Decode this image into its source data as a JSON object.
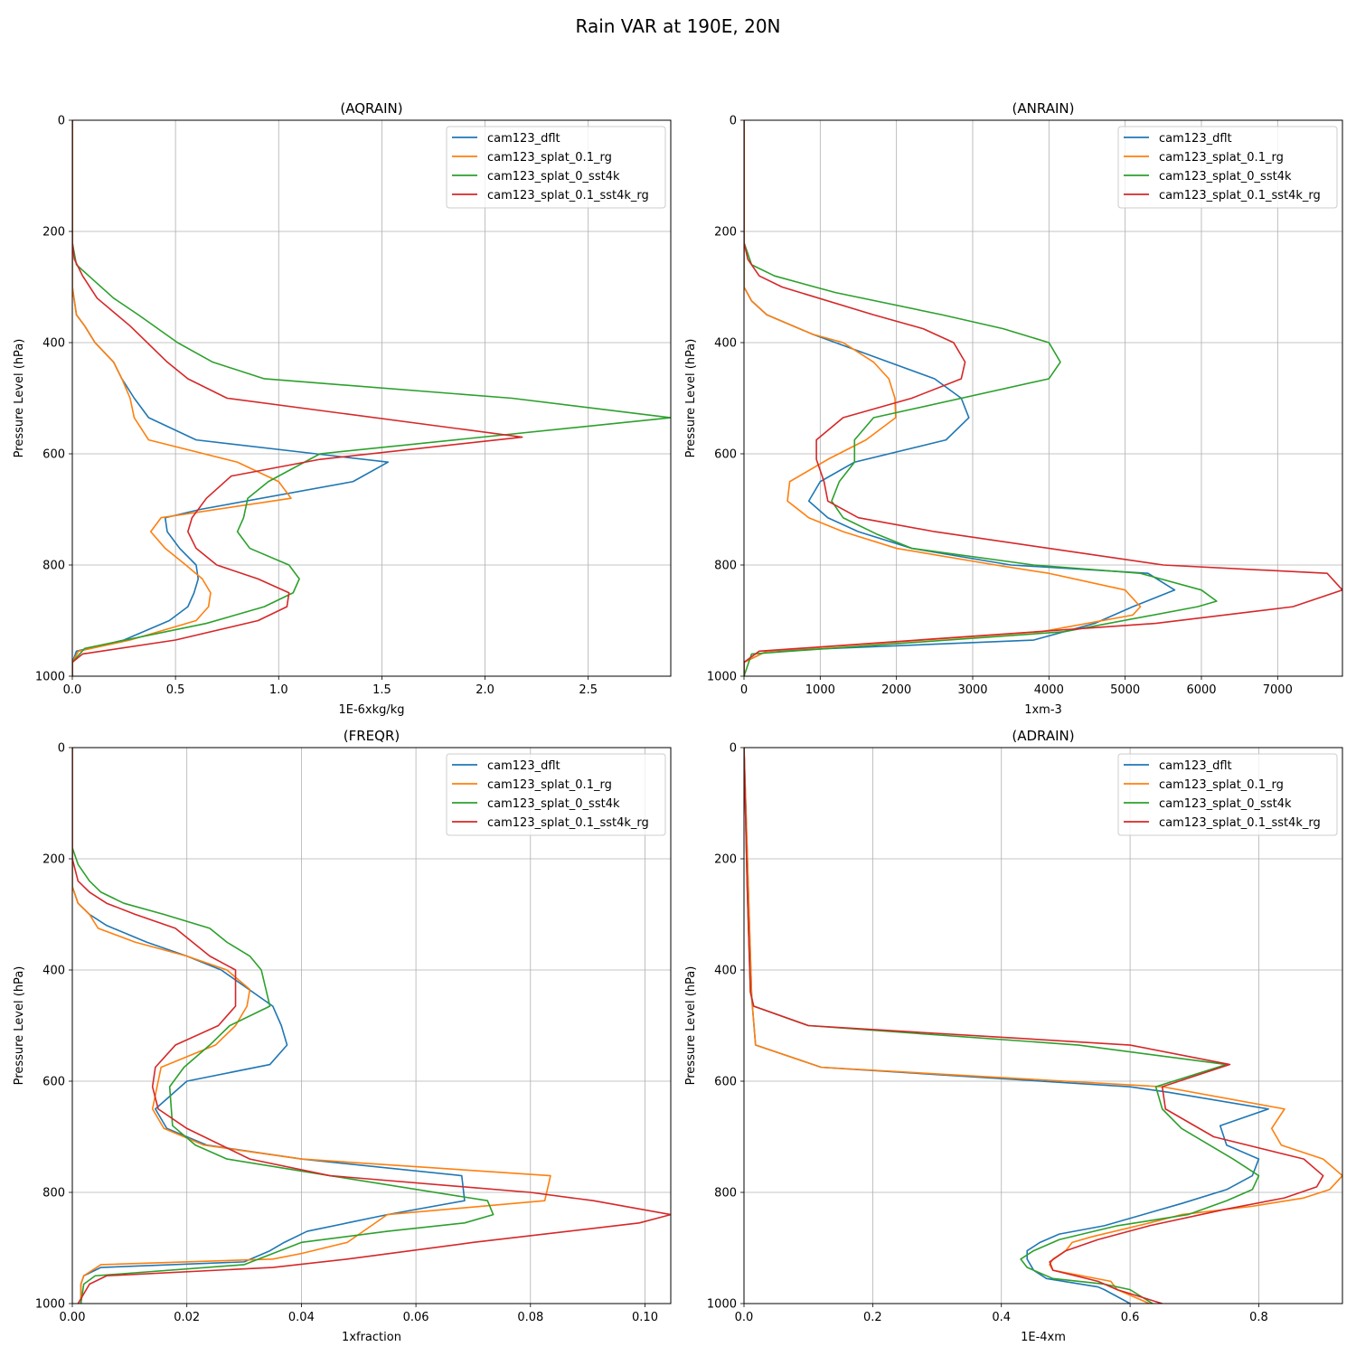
{
  "figure": {
    "title": "Rain VAR at 190E, 20N"
  },
  "colors": {
    "cam123_dflt": "#1f77b4",
    "cam123_splat_0.1_rg": "#ff7f0e",
    "cam123_splat_0_sst4k": "#2ca02c",
    "cam123_splat_0.1_sst4k_rg": "#d62728"
  },
  "chart_data": [
    {
      "type": "line",
      "title": "(AQRAIN)",
      "xlabel": "1E-6xkg/kg",
      "ylabel": "Pressure Level (hPa)",
      "xlim": [
        0,
        2.9
      ],
      "ylim": [
        1000,
        0
      ],
      "xticks": [
        0.0,
        0.5,
        1.0,
        1.5,
        2.0,
        2.5
      ],
      "xtick_labels": [
        "0.0",
        "0.5",
        "1.0",
        "1.5",
        "2.0",
        "2.5"
      ],
      "yticks": [
        0,
        200,
        400,
        600,
        800,
        1000
      ],
      "ytick_labels": [
        "0",
        "200",
        "400",
        "600",
        "800",
        "1000"
      ],
      "grid": true,
      "legend_position": "top-right",
      "series": [
        {
          "name": "cam123_dflt",
          "x": [
            0,
            0,
            0.02,
            0.06,
            0.11,
            0.2,
            0.24,
            0.3,
            0.37,
            0.6,
            1.53,
            1.36,
            0.62,
            0.45,
            0.46,
            0.52,
            0.6,
            0.61,
            0.59,
            0.56,
            0.47,
            0.25,
            0.02,
            0,
            0
          ],
          "y": [
            0,
            300,
            350,
            370,
            400,
            435,
            465,
            500,
            535,
            575,
            615,
            650,
            700,
            715,
            740,
            770,
            800,
            825,
            850,
            875,
            900,
            935,
            955,
            975,
            1000
          ]
        },
        {
          "name": "cam123_splat_0.1_rg",
          "x": [
            0,
            0,
            0.02,
            0.06,
            0.11,
            0.2,
            0.24,
            0.28,
            0.3,
            0.37,
            0.8,
            1.0,
            1.06,
            0.43,
            0.38,
            0.45,
            0.55,
            0.63,
            0.67,
            0.66,
            0.6,
            0.28,
            0.03,
            0,
            0
          ],
          "y": [
            0,
            300,
            350,
            370,
            400,
            435,
            465,
            500,
            535,
            575,
            615,
            650,
            680,
            715,
            740,
            770,
            800,
            825,
            850,
            875,
            900,
            935,
            955,
            975,
            1000
          ]
        },
        {
          "name": "cam123_splat_0_sst4k",
          "x": [
            0,
            0,
            0.02,
            0.08,
            0.2,
            0.32,
            0.51,
            0.68,
            0.93,
            2.13,
            2.9,
            1.2,
            0.95,
            0.85,
            0.83,
            0.8,
            0.86,
            1.05,
            1.1,
            1.07,
            0.93,
            0.65,
            0.06,
            0,
            0
          ],
          "y": [
            0,
            220,
            260,
            280,
            320,
            350,
            400,
            435,
            465,
            500,
            535,
            600,
            650,
            680,
            715,
            740,
            770,
            800,
            825,
            850,
            875,
            905,
            950,
            975,
            1000
          ]
        },
        {
          "name": "cam123_splat_0.1_sst4k_rg",
          "x": [
            0,
            0,
            0.01,
            0.05,
            0.12,
            0.28,
            0.46,
            0.56,
            0.75,
            2.18,
            1.2,
            0.77,
            0.65,
            0.58,
            0.56,
            0.6,
            0.7,
            0.9,
            1.05,
            1.04,
            0.9,
            0.5,
            0.05,
            0,
            0
          ],
          "y": [
            0,
            220,
            250,
            280,
            320,
            370,
            435,
            465,
            500,
            570,
            610,
            640,
            680,
            715,
            740,
            770,
            800,
            825,
            850,
            875,
            900,
            935,
            960,
            975,
            1000
          ]
        }
      ]
    },
    {
      "type": "line",
      "title": "(ANRAIN)",
      "xlabel": "1xm-3",
      "ylabel": "Pressure Level (hPa)",
      "xlim": [
        0,
        7850
      ],
      "ylim": [
        1000,
        0
      ],
      "xticks": [
        0,
        1000,
        2000,
        3000,
        4000,
        5000,
        6000,
        7000
      ],
      "xtick_labels": [
        "0",
        "1000",
        "2000",
        "3000",
        "4000",
        "5000",
        "6000",
        "7000"
      ],
      "yticks": [
        0,
        200,
        400,
        600,
        800,
        1000
      ],
      "ytick_labels": [
        "0",
        "200",
        "400",
        "600",
        "800",
        "1000"
      ],
      "grid": true,
      "legend_position": "top-right",
      "series": [
        {
          "name": "cam123_dflt",
          "x": [
            0,
            0,
            100,
            300,
            900,
            1800,
            2500,
            2850,
            2950,
            2650,
            1450,
            1000,
            850,
            1100,
            1500,
            2200,
            3500,
            5300,
            5650,
            5100,
            4600,
            3800,
            300,
            0,
            0
          ],
          "y": [
            0,
            300,
            325,
            350,
            385,
            430,
            465,
            500,
            535,
            575,
            615,
            650,
            685,
            715,
            740,
            770,
            800,
            815,
            845,
            875,
            905,
            935,
            955,
            975,
            1000
          ]
        },
        {
          "name": "cam123_splat_0.1_rg",
          "x": [
            0,
            0,
            100,
            300,
            900,
            1300,
            1700,
            1900,
            1980,
            1990,
            1600,
            1100,
            600,
            570,
            850,
            1300,
            2000,
            3300,
            4000,
            5000,
            5200,
            5100,
            3900,
            300,
            0,
            0
          ],
          "y": [
            0,
            300,
            325,
            350,
            385,
            400,
            435,
            465,
            500,
            535,
            575,
            610,
            650,
            685,
            715,
            740,
            770,
            800,
            815,
            845,
            875,
            890,
            920,
            955,
            975,
            1000
          ]
        },
        {
          "name": "cam123_splat_0_sst4k",
          "x": [
            0,
            0,
            100,
            400,
            1200,
            2600,
            3400,
            4000,
            4150,
            4000,
            1700,
            1450,
            1450,
            1250,
            1150,
            1300,
            1750,
            2200,
            3800,
            5200,
            6000,
            6200,
            5950,
            4200,
            100,
            0
          ],
          "y": [
            0,
            220,
            260,
            280,
            310,
            350,
            375,
            400,
            435,
            465,
            535,
            575,
            615,
            650,
            685,
            715,
            745,
            770,
            800,
            815,
            845,
            865,
            875,
            920,
            960,
            1000
          ]
        },
        {
          "name": "cam123_splat_0.1_sst4k_rg",
          "x": [
            0,
            0,
            50,
            200,
            500,
            1700,
            2350,
            2750,
            2900,
            2850,
            2200,
            1300,
            950,
            950,
            1050,
            1100,
            1500,
            2500,
            4000,
            5500,
            7650,
            7850,
            7200,
            5400,
            200,
            0,
            0
          ],
          "y": [
            0,
            220,
            250,
            280,
            300,
            350,
            375,
            400,
            435,
            465,
            500,
            535,
            575,
            610,
            650,
            685,
            715,
            740,
            770,
            800,
            815,
            845,
            875,
            905,
            955,
            975,
            1000
          ]
        }
      ]
    },
    {
      "type": "line",
      "title": "(FREQR)",
      "xlabel": "1xfraction",
      "ylabel": "Pressure Level (hPa)",
      "xlim": [
        0,
        0.1045
      ],
      "ylim": [
        1000,
        0
      ],
      "xticks": [
        0.0,
        0.02,
        0.04,
        0.06,
        0.08,
        0.1
      ],
      "xtick_labels": [
        "0.00",
        "0.02",
        "0.04",
        "0.06",
        "0.08",
        "0.10"
      ],
      "yticks": [
        0,
        200,
        400,
        600,
        800,
        1000
      ],
      "ytick_labels": [
        "0",
        "200",
        "400",
        "600",
        "800",
        "1000"
      ],
      "grid": true,
      "legend_position": "top-right",
      "series": [
        {
          "name": "cam123_dflt",
          "x": [
            0,
            0,
            0.001,
            0.003,
            0.006,
            0.013,
            0.02,
            0.026,
            0.035,
            0.0365,
            0.0375,
            0.0345,
            0.02,
            0.0145,
            0.0165,
            0.0235,
            0.04,
            0.068,
            0.0685,
            0.055,
            0.048,
            0.041,
            0.037,
            0.0345,
            0.03,
            0.005,
            0.002,
            0.0015,
            0.0015
          ],
          "y": [
            0,
            250,
            280,
            300,
            320,
            350,
            375,
            400,
            465,
            500,
            535,
            570,
            600,
            650,
            685,
            715,
            740,
            770,
            815,
            840,
            855,
            870,
            890,
            905,
            925,
            935,
            950,
            965,
            1000
          ]
        },
        {
          "name": "cam123_splat_0.1_rg",
          "x": [
            0,
            0,
            0.001,
            0.003,
            0.0045,
            0.011,
            0.02,
            0.027,
            0.031,
            0.0305,
            0.0285,
            0.025,
            0.0155,
            0.014,
            0.016,
            0.023,
            0.04,
            0.0835,
            0.0825,
            0.055,
            0.048,
            0.04,
            0.035,
            0.005,
            0.002,
            0.0015,
            0.0015
          ],
          "y": [
            0,
            250,
            280,
            300,
            325,
            350,
            375,
            400,
            435,
            465,
            500,
            535,
            575,
            650,
            685,
            715,
            740,
            770,
            815,
            840,
            890,
            910,
            920,
            930,
            950,
            965,
            1000
          ]
        },
        {
          "name": "cam123_splat_0_sst4k",
          "x": [
            0,
            0.001,
            0.003,
            0.005,
            0.009,
            0.016,
            0.024,
            0.027,
            0.031,
            0.033,
            0.0345,
            0.0275,
            0.024,
            0.0195,
            0.017,
            0.0175,
            0.0215,
            0.027,
            0.045,
            0.0725,
            0.0735,
            0.0685,
            0.055,
            0.04,
            0.03,
            0.004,
            0.002,
            0.0015
          ],
          "y": [
            180,
            210,
            240,
            260,
            280,
            300,
            325,
            350,
            375,
            400,
            465,
            500,
            535,
            575,
            610,
            680,
            715,
            740,
            770,
            815,
            840,
            855,
            870,
            890,
            930,
            950,
            965,
            1000
          ]
        },
        {
          "name": "cam123_splat_0.1_sst4k_rg",
          "x": [
            0,
            0,
            0.001,
            0.003,
            0.006,
            0.011,
            0.018,
            0.024,
            0.0285,
            0.0285,
            0.0255,
            0.018,
            0.0145,
            0.014,
            0.015,
            0.02,
            0.026,
            0.031,
            0.045,
            0.08,
            0.091,
            0.1045,
            0.099,
            0.07,
            0.048,
            0.035,
            0.006,
            0.003,
            0.001
          ],
          "y": [
            0,
            200,
            240,
            260,
            280,
            300,
            325,
            375,
            400,
            465,
            500,
            535,
            575,
            610,
            650,
            685,
            715,
            740,
            770,
            800,
            815,
            840,
            855,
            890,
            920,
            935,
            950,
            965,
            1000
          ]
        }
      ]
    },
    {
      "type": "line",
      "title": "(ADRAIN)",
      "xlabel": "1E-4xm",
      "ylabel": "Pressure Level (hPa)",
      "xlim": [
        0,
        0.93
      ],
      "ylim": [
        1000,
        0
      ],
      "xticks": [
        0.0,
        0.2,
        0.4,
        0.6,
        0.8
      ],
      "xtick_labels": [
        "0.0",
        "0.2",
        "0.4",
        "0.6",
        "0.8"
      ],
      "yticks": [
        0,
        200,
        400,
        600,
        800,
        1000
      ],
      "ytick_labels": [
        "0",
        "200",
        "400",
        "600",
        "800",
        "1000"
      ],
      "grid": true,
      "legend_position": "top-right",
      "series": [
        {
          "name": "cam123_dflt",
          "x": [
            0,
            0.008,
            0.012,
            0.018,
            0.12,
            0.6,
            0.66,
            0.815,
            0.74,
            0.75,
            0.8,
            0.79,
            0.75,
            0.68,
            0.56,
            0.49,
            0.46,
            0.44,
            0.44,
            0.45,
            0.47,
            0.55,
            0.56,
            0.6
          ],
          "y": [
            0,
            300,
            450,
            535,
            575,
            610,
            620,
            650,
            680,
            715,
            740,
            770,
            795,
            820,
            860,
            875,
            890,
            905,
            920,
            940,
            955,
            970,
            975,
            1000
          ]
        },
        {
          "name": "cam123_splat_0.1_rg",
          "x": [
            0,
            0.008,
            0.012,
            0.018,
            0.12,
            0.65,
            0.84,
            0.82,
            0.835,
            0.9,
            0.93,
            0.91,
            0.87,
            0.79,
            0.68,
            0.63,
            0.54,
            0.51,
            0.5,
            0.48,
            0.475,
            0.48,
            0.57,
            0.58,
            0.63
          ],
          "y": [
            0,
            300,
            450,
            535,
            575,
            610,
            650,
            685,
            715,
            740,
            770,
            795,
            810,
            825,
            840,
            855,
            880,
            890,
            905,
            920,
            930,
            940,
            960,
            975,
            1000
          ]
        },
        {
          "name": "cam123_splat_0_sst4k",
          "x": [
            0,
            0.005,
            0.01,
            0.015,
            0.1,
            0.52,
            0.75,
            0.64,
            0.65,
            0.68,
            0.76,
            0.8,
            0.79,
            0.75,
            0.69,
            0.58,
            0.49,
            0.45,
            0.43,
            0.44,
            0.48,
            0.56,
            0.6,
            0.635
          ],
          "y": [
            0,
            250,
            440,
            465,
            500,
            535,
            570,
            610,
            650,
            685,
            740,
            770,
            795,
            815,
            840,
            860,
            885,
            905,
            920,
            935,
            955,
            965,
            975,
            1000
          ]
        },
        {
          "name": "cam123_splat_0.1_sst4k_rg",
          "x": [
            0,
            0.005,
            0.01,
            0.015,
            0.1,
            0.6,
            0.755,
            0.65,
            0.655,
            0.73,
            0.87,
            0.9,
            0.89,
            0.84,
            0.75,
            0.63,
            0.55,
            0.5,
            0.475,
            0.48,
            0.55,
            0.58,
            0.65
          ],
          "y": [
            0,
            250,
            440,
            465,
            500,
            535,
            570,
            610,
            650,
            700,
            740,
            770,
            790,
            810,
            830,
            860,
            885,
            905,
            925,
            940,
            960,
            975,
            1000
          ]
        }
      ]
    }
  ]
}
